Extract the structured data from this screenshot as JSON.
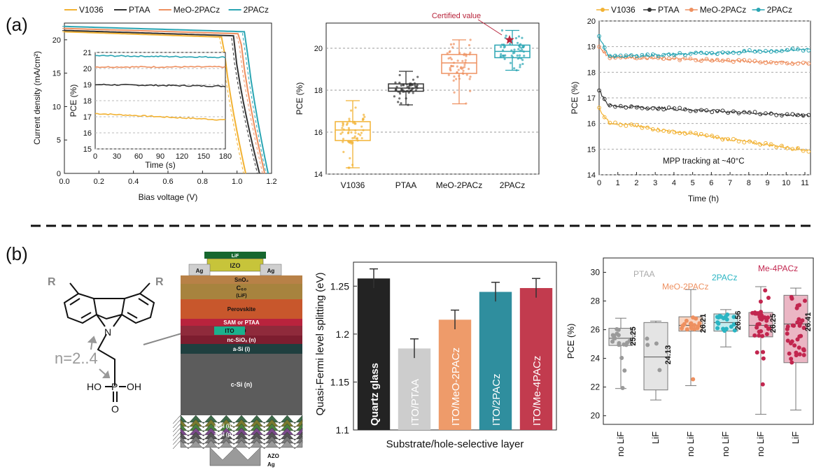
{
  "panel_labels": {
    "a": "(a)",
    "b": "(b)"
  },
  "colors": {
    "V1036": "#f2b233",
    "PTAA": "#333333",
    "MeO-2PACz": "#ee9060",
    "2PACz": "#2aa5b3",
    "Me-4PACz": "#c2264f",
    "certified": "#b8243b"
  },
  "chart_data": [
    {
      "id": "jv",
      "type": "line",
      "xlabel": "Bias voltage (V)",
      "ylabel": "Current density (mA/cm²)",
      "xlim": [
        0,
        1.2
      ],
      "xticks": [
        "0.0",
        "0.2",
        "0.4",
        "0.6",
        "0.8",
        "1.0",
        "1.2"
      ],
      "yticks": [
        "0",
        "5",
        "10",
        "15",
        "20"
      ],
      "ylim": [
        0,
        22.5
      ],
      "legend": [
        "V1036",
        "PTAA",
        "MeO-2PACz",
        "2PACz"
      ],
      "series": [
        {
          "name": "V1036",
          "jsc": 21.2,
          "voc": 1.05,
          "vknee": 0.92
        },
        {
          "name": "PTAA",
          "jsc": 21.4,
          "voc": 1.13,
          "vknee": 0.98
        },
        {
          "name": "MeO-2PACz",
          "jsc": 21.7,
          "voc": 1.16,
          "vknee": 1.02
        },
        {
          "name": "2PACz",
          "jsc": 22.0,
          "voc": 1.18,
          "vknee": 1.05
        }
      ],
      "inset": {
        "xlabel": "Time (s)",
        "ylabel": "PCE (%)",
        "xticks": [
          "0",
          "30",
          "60",
          "90",
          "120",
          "150",
          "180"
        ],
        "yticks": [
          "15",
          "16",
          "17",
          "18",
          "19",
          "20",
          "21"
        ],
        "xlim": [
          0,
          180
        ],
        "ylim": [
          15,
          21
        ],
        "series": [
          {
            "name": "V1036",
            "start": 17.2,
            "end": 16.8
          },
          {
            "name": "PTAA",
            "start": 19.0,
            "end": 18.9
          },
          {
            "name": "MeO-2PACz",
            "start": 20.1,
            "end": 20.1
          },
          {
            "name": "2PACz",
            "start": 20.8,
            "end": 20.7
          }
        ]
      }
    },
    {
      "id": "pce_box",
      "type": "box",
      "ylabel": "PCE (%)",
      "ylim": [
        14,
        21.2
      ],
      "yticks": [
        "14",
        "16",
        "18",
        "20"
      ],
      "categories": [
        "V1036",
        "PTAA",
        "MeO-2PACz",
        "2PACz"
      ],
      "boxes": [
        {
          "name": "V1036",
          "min": 14.3,
          "q1": 15.6,
          "median": 16.1,
          "q3": 16.5,
          "max": 17.5
        },
        {
          "name": "PTAA",
          "min": 17.3,
          "q1": 17.95,
          "median": 18.1,
          "q3": 18.3,
          "max": 18.9
        },
        {
          "name": "MeO-2PACz",
          "min": 17.35,
          "q1": 18.8,
          "median": 19.3,
          "q3": 19.7,
          "max": 20.4
        },
        {
          "name": "2PACz",
          "min": 18.95,
          "q1": 19.55,
          "median": 19.85,
          "q3": 20.15,
          "max": 20.85
        }
      ],
      "annotation": "Certified value",
      "certified": 20.4
    },
    {
      "id": "mpp",
      "type": "line",
      "xlabel": "Time (h)",
      "ylabel": "PCE (%)",
      "xlim": [
        0,
        11.3
      ],
      "ylim": [
        14,
        20
      ],
      "xticks": [
        "0",
        "1",
        "2",
        "3",
        "4",
        "5",
        "6",
        "7",
        "8",
        "9",
        "10",
        "11"
      ],
      "yticks": [
        "14",
        "15",
        "16",
        "17",
        "18",
        "19",
        "20"
      ],
      "legend": [
        "V1036",
        "PTAA",
        "MeO-2PACz",
        "2PACz"
      ],
      "annotation": "MPP tracking at ~40°C",
      "series": [
        {
          "name": "V1036",
          "start": 16.6,
          "mid": 16.05,
          "end": 14.95
        },
        {
          "name": "PTAA",
          "start": 17.3,
          "mid": 16.7,
          "end": 16.3
        },
        {
          "name": "MeO-2PACz",
          "start": 19.0,
          "mid": 18.6,
          "end": 18.35
        },
        {
          "name": "2PACz",
          "start": 19.4,
          "mid": 18.6,
          "end": 18.9
        }
      ]
    },
    {
      "id": "qfls",
      "type": "bar",
      "ylabel": "Quasi-Fermi level splitting (eV)",
      "xlabel": "Substrate/hole-selective layer",
      "ylim": [
        1.1,
        1.275
      ],
      "yticks": [
        "1.1",
        "1.15",
        "1.2",
        "1.25"
      ],
      "categories": [
        "Quartz glass",
        "ITO/PTAA",
        "ITO/MeO-2PACz",
        "ITO/2PACz",
        "ITO/Me-4PACz"
      ],
      "values": [
        1.258,
        1.185,
        1.215,
        1.244,
        1.248
      ],
      "errors": [
        0.01,
        0.01,
        0.01,
        0.01,
        0.01
      ],
      "colors": [
        "#232323",
        "#cdcdcd",
        "#ee9b6a",
        "#2f8e9e",
        "#c23b4e"
      ]
    },
    {
      "id": "lif_box",
      "type": "box",
      "ylabel": "PCE (%)",
      "ylim": [
        19.4,
        31
      ],
      "yticks": [
        "20",
        "22",
        "24",
        "26",
        "28",
        "30"
      ],
      "categories": [
        "no LiF",
        "LiF",
        "no LiF",
        "no LiF",
        "no LiF",
        "LiF"
      ],
      "group_labels": [
        "PTAA",
        "MeO-2PACz",
        "2PACz",
        "Me-4PACz"
      ],
      "boxes": [
        {
          "group": "PTAA",
          "min": 21.9,
          "q1": 24.9,
          "median": 25.4,
          "q3": 26.1,
          "max": 26.8,
          "value_label": "25.25"
        },
        {
          "group": "PTAA",
          "min": 21.1,
          "q1": 21.8,
          "median": 24.1,
          "q3": 26.5,
          "max": 26.6,
          "value_label": "24.13"
        },
        {
          "group": "MeO-2PACz",
          "min": 22.1,
          "q1": 25.9,
          "median": 26.3,
          "q3": 26.9,
          "max": 28.8,
          "value_label": "26.21"
        },
        {
          "group": "2PACz",
          "min": 24.8,
          "q1": 25.9,
          "median": 26.5,
          "q3": 27.1,
          "max": 27.4,
          "value_label": "26.56"
        },
        {
          "group": "Me-4PACz",
          "min": 20.1,
          "q1": 25.5,
          "median": 26.3,
          "q3": 27.2,
          "max": 29.0,
          "value_label": "26.25"
        },
        {
          "group": "Me-4PACz",
          "min": 20.4,
          "q1": 23.7,
          "median": 26.4,
          "q3": 28.4,
          "max": 28.9,
          "value_label": "26.41"
        }
      ]
    }
  ],
  "molecule": {
    "R_left": "R",
    "R_right": "R",
    "N": "N",
    "n_label": "n=2..4",
    "HO": "HO",
    "P": "P",
    "OH": "OH",
    "O": "O"
  },
  "stack": {
    "layers": [
      "LiF",
      "IZO",
      "Ag",
      "Ag",
      "SnO₂",
      "C₆₀",
      "(LiF)",
      "Perovskite",
      "SAM or PTAA",
      "ITO",
      "nc-SiOₓ (n)",
      "a-Si (i)",
      "c-Si (n)",
      "a-Si (i)",
      "a-Si (p)",
      "AZO",
      "Ag"
    ]
  }
}
